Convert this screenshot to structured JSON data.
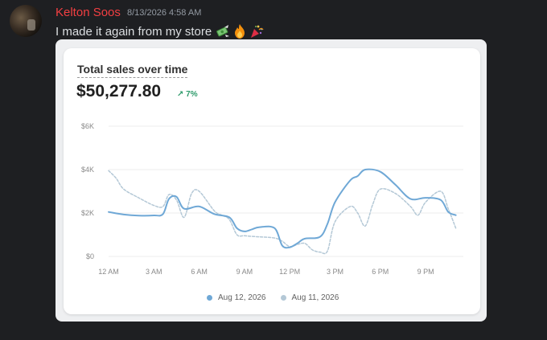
{
  "message": {
    "username": "Kelton Soos",
    "timestamp": "8/13/2026 4:58 AM",
    "text": "I made it again from my store",
    "emojis": [
      "money-with-wings-icon",
      "fire-icon",
      "party-popper-icon"
    ]
  },
  "card": {
    "title": "Total sales over time",
    "total": "$50,277.80",
    "change": "↗ 7%"
  },
  "colors": {
    "primary": "#6fa8d6",
    "comparison": "#b4c8d6"
  },
  "chart_data": {
    "type": "line",
    "title": "Total sales over time",
    "x_ticks": [
      "12 AM",
      "3 AM",
      "6 AM",
      "9 AM",
      "12 PM",
      "3 PM",
      "6 PM",
      "9 PM"
    ],
    "y_ticks": [
      "$0",
      "$2K",
      "$4K",
      "$6K"
    ],
    "ylim": [
      0,
      6000
    ],
    "xlim": [
      0,
      23.5
    ],
    "grid": true,
    "legend_position": "bottom",
    "series": [
      {
        "name": "Aug 12, 2026",
        "style": "solid",
        "points": [
          [
            0,
            2050
          ],
          [
            1,
            1930
          ],
          [
            2,
            1880
          ],
          [
            3,
            1890
          ],
          [
            3.6,
            1950
          ],
          [
            4,
            2650
          ],
          [
            4.5,
            2750
          ],
          [
            5,
            2200
          ],
          [
            6,
            2300
          ],
          [
            7,
            1950
          ],
          [
            8,
            1800
          ],
          [
            8.5,
            1300
          ],
          [
            9,
            1150
          ],
          [
            9.5,
            1250
          ],
          [
            10,
            1350
          ],
          [
            11,
            1300
          ],
          [
            11.5,
            500
          ],
          [
            12,
            420
          ],
          [
            12.5,
            600
          ],
          [
            13,
            820
          ],
          [
            14,
            900
          ],
          [
            14.5,
            1500
          ],
          [
            15,
            2500
          ],
          [
            16,
            3500
          ],
          [
            16.5,
            3700
          ],
          [
            17,
            4000
          ],
          [
            18,
            3900
          ],
          [
            19,
            3300
          ],
          [
            20,
            2650
          ],
          [
            21,
            2700
          ],
          [
            22,
            2600
          ],
          [
            22.5,
            2050
          ],
          [
            23,
            1900
          ]
        ]
      },
      {
        "name": "Aug 11, 2026",
        "style": "dashed",
        "points": [
          [
            0,
            3950
          ],
          [
            0.5,
            3600
          ],
          [
            1,
            3100
          ],
          [
            2,
            2700
          ],
          [
            3,
            2350
          ],
          [
            3.6,
            2300
          ],
          [
            4,
            2850
          ],
          [
            4.5,
            2600
          ],
          [
            5,
            1800
          ],
          [
            5.5,
            2900
          ],
          [
            6,
            3000
          ],
          [
            7,
            2100
          ],
          [
            7.5,
            1900
          ],
          [
            8,
            1700
          ],
          [
            8.5,
            1000
          ],
          [
            9,
            950
          ],
          [
            10,
            900
          ],
          [
            11,
            850
          ],
          [
            11.5,
            700
          ],
          [
            12,
            450
          ],
          [
            12.5,
            550
          ],
          [
            13,
            600
          ],
          [
            13.5,
            300
          ],
          [
            14,
            200
          ],
          [
            14.5,
            250
          ],
          [
            15,
            1600
          ],
          [
            16,
            2300
          ],
          [
            16.5,
            2000
          ],
          [
            17,
            1400
          ],
          [
            17.5,
            2400
          ],
          [
            18,
            3100
          ],
          [
            19,
            2900
          ],
          [
            20,
            2300
          ],
          [
            20.5,
            1900
          ],
          [
            21,
            2500
          ],
          [
            22,
            3000
          ],
          [
            22.5,
            2200
          ],
          [
            23,
            1300
          ]
        ]
      }
    ]
  }
}
